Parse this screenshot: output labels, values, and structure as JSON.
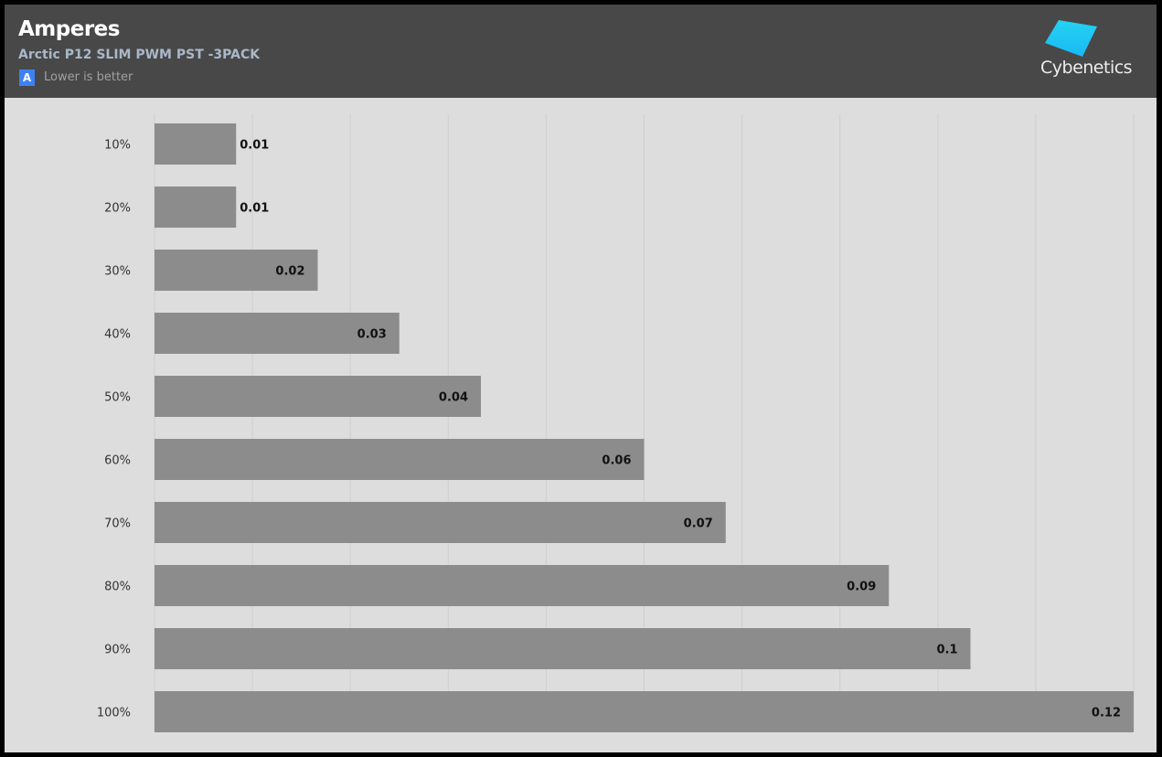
{
  "header": {
    "title": "Amperes",
    "subtitle": "Arctic P12 SLIM PWM PST -3PACK",
    "badge": "A",
    "note": "Lower is better",
    "logo": "Cybenetics"
  },
  "colors": {
    "bar": "#8c8c8c",
    "grid": "#cfcfcf",
    "header": "#484848",
    "background": "#dddddd"
  },
  "chart_data": {
    "type": "bar",
    "orientation": "horizontal",
    "title": "Amperes",
    "subtitle": "Arctic P12 SLIM PWM PST -3PACK",
    "categories": [
      "10%",
      "20%",
      "30%",
      "40%",
      "50%",
      "60%",
      "70%",
      "80%",
      "90%",
      "100%"
    ],
    "values": [
      0.01,
      0.01,
      0.02,
      0.03,
      0.04,
      0.06,
      0.07,
      0.09,
      0.1,
      0.12
    ],
    "value_labels": [
      "0.01",
      "0.01",
      "0.02",
      "0.03",
      "0.04",
      "0.06",
      "0.07",
      "0.09",
      "0.1",
      "0.12"
    ],
    "xlim": [
      0,
      0.12
    ],
    "grid": true,
    "gridlines": 10,
    "xlabel": "",
    "ylabel": ""
  }
}
